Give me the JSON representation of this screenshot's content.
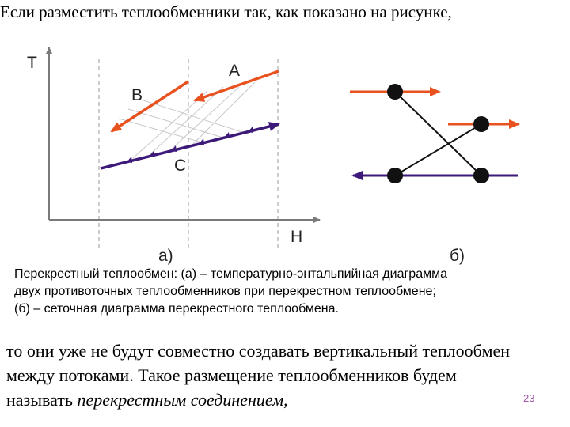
{
  "heading": "Если разместить теплообменники так, как показано на рисунке,",
  "figure_a": {
    "axis_t": "T",
    "axis_h": "H",
    "label_a": "A",
    "label_b": "B",
    "label_c": "C",
    "sublabel": "а)",
    "colors": {
      "hot": "#e8521f",
      "cold": "#3d1a7a",
      "guide": "#c8c8c8",
      "axis": "#7a7a7a"
    }
  },
  "figure_b": {
    "sublabel": "б)",
    "colors": {
      "hot": "#e8521f",
      "cold": "#3d1a7a",
      "node": "#111111"
    }
  },
  "caption": [
    "Перекрестный теплообмен: (а) – температурно-энтальпийная диаграмма",
    "двух противоточных теплообменников при перекрестном теплообмене;",
    "(б) – сеточная диаграмма перекрестного теплообмена."
  ],
  "body": {
    "line1": "то они уже не будут совместно создавать вертикальный теплообмен",
    "line2": "между потоками. Такое размещение теплообменников будем",
    "line3_prefix": "называть ",
    "line3_emphasis": "перекрестным соединением,"
  },
  "page_number": "23"
}
